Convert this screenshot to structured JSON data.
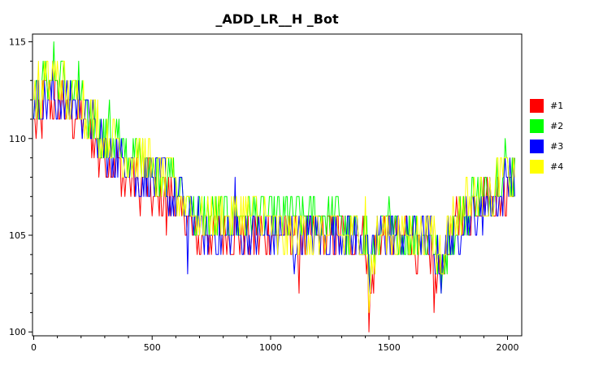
{
  "chart_data": {
    "type": "line",
    "title": "_ADD_LR__H _Bot",
    "xlabel": "",
    "ylabel": "",
    "xlim": [
      -5,
      2060
    ],
    "ylim": [
      99.8,
      115.4
    ],
    "x_ticks": [
      0,
      500,
      1000,
      1500,
      2000
    ],
    "y_ticks": [
      100,
      105,
      110,
      115
    ],
    "legend_position": "right",
    "grid": false,
    "series": [
      {
        "name": "#1",
        "color": "#FF0000",
        "keypoints": [
          [
            0,
            111
          ],
          [
            80,
            112
          ],
          [
            180,
            111
          ],
          [
            300,
            109
          ],
          [
            420,
            108
          ],
          [
            560,
            107
          ],
          [
            700,
            105
          ],
          [
            850,
            104.5
          ],
          [
            1000,
            104.5
          ],
          [
            1150,
            104.5
          ],
          [
            1300,
            104.5
          ],
          [
            1400,
            104.5
          ],
          [
            1420,
            102
          ],
          [
            1450,
            104.5
          ],
          [
            1600,
            104.5
          ],
          [
            1680,
            104
          ],
          [
            1700,
            103
          ],
          [
            1740,
            104
          ],
          [
            1800,
            106
          ],
          [
            1900,
            107
          ],
          [
            2000,
            107.5
          ],
          [
            2030,
            107.5
          ]
        ],
        "spikes": [
          [
            10,
            110
          ],
          [
            110,
            111
          ],
          [
            370,
            107
          ],
          [
            450,
            106
          ],
          [
            560,
            105
          ],
          [
            700,
            104
          ],
          [
            1120,
            102
          ],
          [
            1417,
            100
          ],
          [
            1690,
            101
          ],
          [
            1700,
            102
          ]
        ]
      },
      {
        "name": "#2",
        "color": "#00FF00",
        "keypoints": [
          [
            0,
            112
          ],
          [
            80,
            113
          ],
          [
            180,
            112
          ],
          [
            300,
            110
          ],
          [
            420,
            109
          ],
          [
            560,
            108
          ],
          [
            700,
            106
          ],
          [
            850,
            105.5
          ],
          [
            1000,
            105.5
          ],
          [
            1150,
            105.5
          ],
          [
            1300,
            105.5
          ],
          [
            1400,
            105
          ],
          [
            1420,
            103
          ],
          [
            1450,
            105
          ],
          [
            1600,
            105.5
          ],
          [
            1680,
            105
          ],
          [
            1720,
            103
          ],
          [
            1760,
            105
          ],
          [
            1850,
            106.5
          ],
          [
            1950,
            107.5
          ],
          [
            2030,
            108
          ]
        ],
        "spikes": [
          [
            85,
            115
          ],
          [
            190,
            114
          ],
          [
            320,
            112
          ],
          [
            520,
            109
          ],
          [
            1500,
            107
          ],
          [
            1990,
            110
          ],
          [
            2020,
            109
          ],
          [
            1720,
            102
          ]
        ]
      },
      {
        "name": "#3",
        "color": "#0000FF",
        "keypoints": [
          [
            0,
            112
          ],
          [
            80,
            112.5
          ],
          [
            180,
            112
          ],
          [
            300,
            109.5
          ],
          [
            420,
            108.5
          ],
          [
            560,
            107.5
          ],
          [
            700,
            105.5
          ],
          [
            850,
            105
          ],
          [
            1000,
            105
          ],
          [
            1150,
            105
          ],
          [
            1300,
            105
          ],
          [
            1400,
            105
          ],
          [
            1420,
            103
          ],
          [
            1450,
            105
          ],
          [
            1600,
            105
          ],
          [
            1680,
            104.5
          ],
          [
            1720,
            103.5
          ],
          [
            1760,
            105
          ],
          [
            1850,
            106
          ],
          [
            1950,
            107
          ],
          [
            2030,
            108
          ]
        ],
        "spikes": [
          [
            310,
            108
          ],
          [
            650,
            103
          ],
          [
            850,
            108
          ],
          [
            1100,
            103
          ],
          [
            1415,
            103
          ],
          [
            1720,
            102
          ],
          [
            2010,
            109
          ]
        ]
      },
      {
        "name": "#4",
        "color": "#FFFF00",
        "keypoints": [
          [
            0,
            112
          ],
          [
            80,
            113
          ],
          [
            180,
            112
          ],
          [
            300,
            110
          ],
          [
            420,
            109
          ],
          [
            560,
            108
          ],
          [
            700,
            106
          ],
          [
            850,
            105.5
          ],
          [
            1000,
            105.5
          ],
          [
            1150,
            105
          ],
          [
            1300,
            105
          ],
          [
            1400,
            105
          ],
          [
            1420,
            102.5
          ],
          [
            1450,
            105
          ],
          [
            1600,
            105
          ],
          [
            1680,
            105
          ],
          [
            1720,
            104
          ],
          [
            1760,
            105.5
          ],
          [
            1850,
            107
          ],
          [
            1950,
            107.5
          ],
          [
            2030,
            108
          ]
        ],
        "spikes": [
          [
            20,
            114
          ],
          [
            1400,
            107
          ],
          [
            1416,
            101
          ],
          [
            1700,
            103
          ],
          [
            2000,
            109
          ]
        ]
      }
    ]
  }
}
